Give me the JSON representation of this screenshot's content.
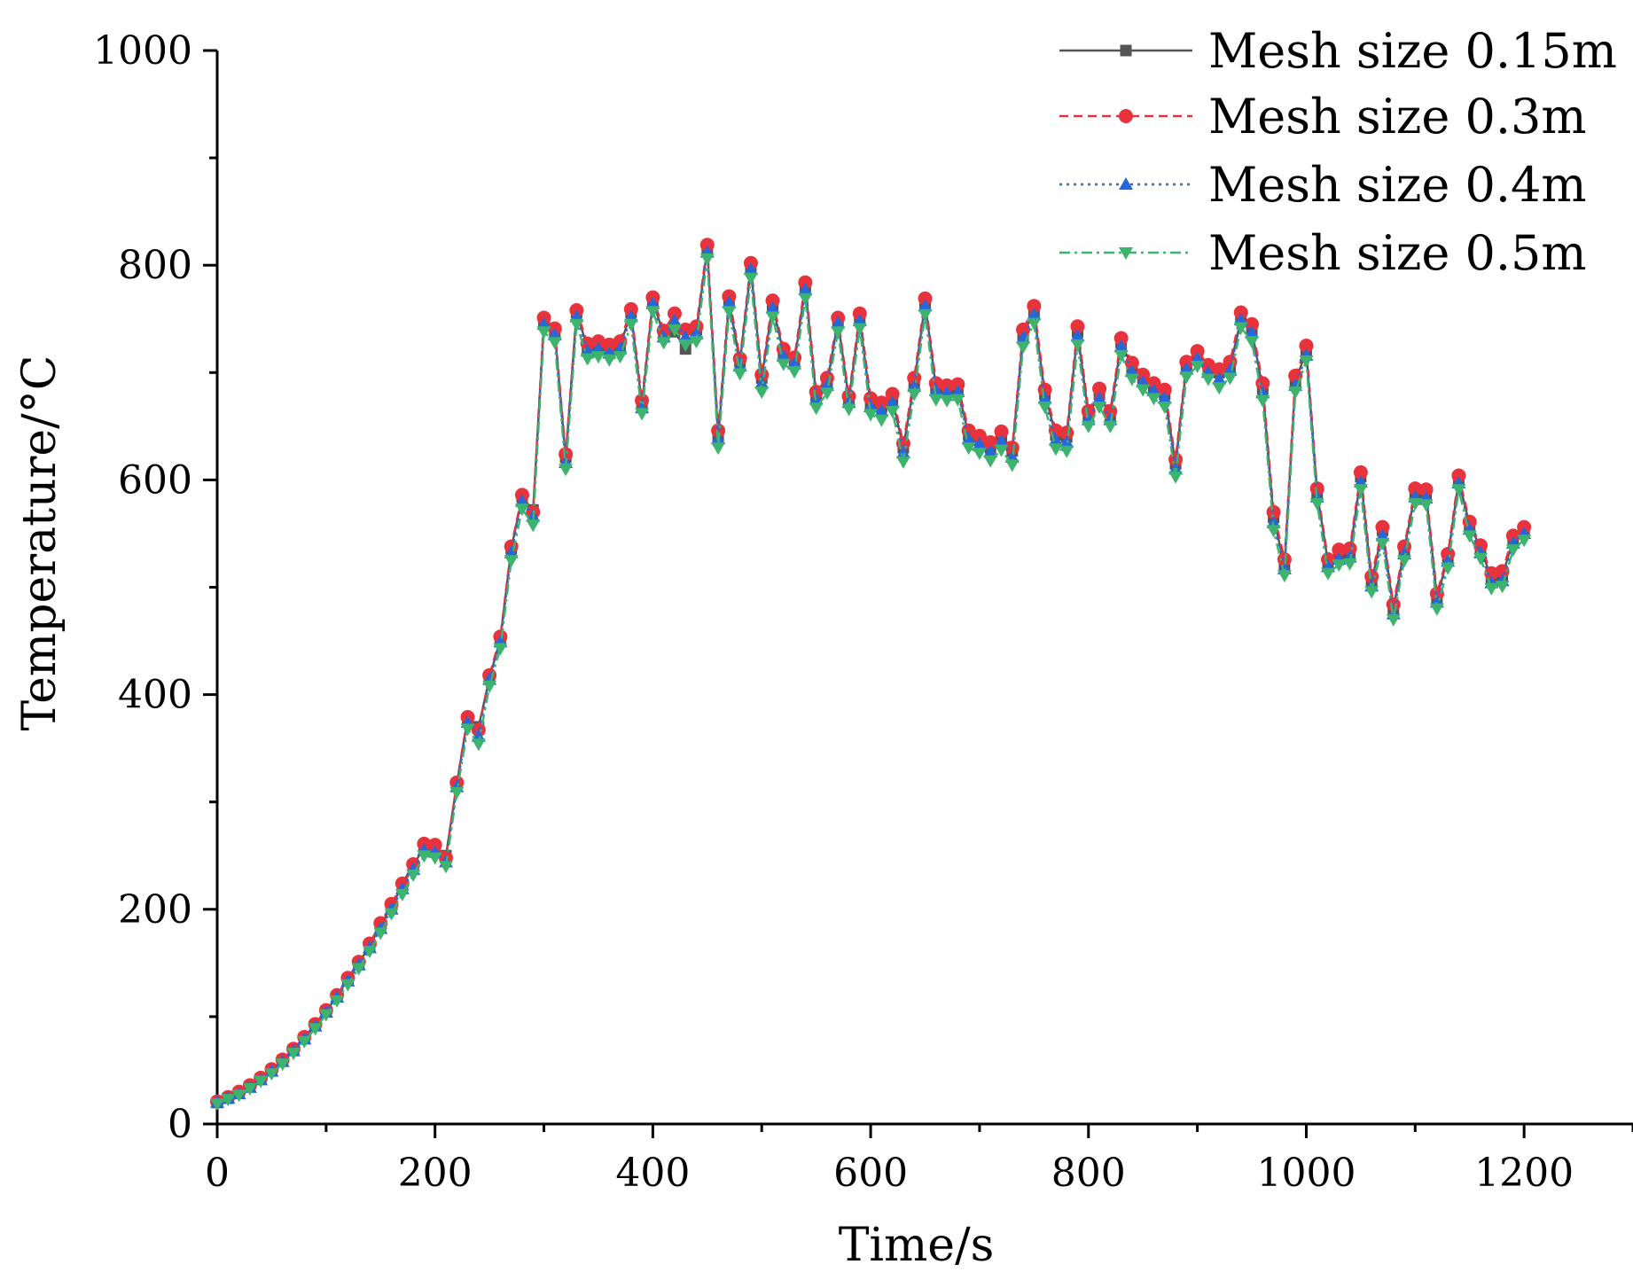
{
  "chart_data": {
    "type": "line",
    "title": "",
    "xlabel": "Time/s",
    "ylabel": "Temperature/°C",
    "xlim": [
      0,
      1300
    ],
    "ylim": [
      0,
      1000
    ],
    "xticks": [
      0,
      200,
      400,
      600,
      800,
      1000,
      1200
    ],
    "yticks": [
      0,
      200,
      400,
      600,
      800,
      1000
    ],
    "xtick_labels": [
      "0",
      "200",
      "400",
      "600",
      "800",
      "1000",
      "1200"
    ],
    "ytick_labels": [
      "0",
      "200",
      "400",
      "600",
      "800",
      "1000"
    ],
    "x": [
      0,
      10,
      20,
      30,
      40,
      50,
      60,
      70,
      80,
      90,
      100,
      110,
      120,
      130,
      140,
      150,
      160,
      170,
      180,
      190,
      200,
      210,
      220,
      230,
      240,
      250,
      260,
      270,
      280,
      290,
      300,
      310,
      320,
      330,
      340,
      350,
      360,
      370,
      380,
      390,
      400,
      410,
      420,
      430,
      440,
      450,
      460,
      470,
      480,
      490,
      500,
      510,
      520,
      530,
      540,
      550,
      560,
      570,
      580,
      590,
      600,
      610,
      620,
      630,
      640,
      650,
      660,
      670,
      680,
      690,
      700,
      710,
      720,
      730,
      740,
      750,
      760,
      770,
      780,
      790,
      800,
      810,
      820,
      830,
      840,
      850,
      860,
      870,
      880,
      890,
      900,
      910,
      920,
      930,
      940,
      950,
      960,
      970,
      980,
      990,
      1000,
      1010,
      1020,
      1030,
      1040,
      1050,
      1060,
      1070,
      1080,
      1090,
      1100,
      1110,
      1120,
      1130,
      1140,
      1150,
      1160,
      1170,
      1180,
      1190,
      1200
    ],
    "legend_position": "top-right",
    "series": [
      {
        "name": "Mesh size 0.15m",
        "color": "#555555",
        "dash": "solid",
        "marker": "square",
        "values": [
          20,
          24,
          29,
          35,
          42,
          50,
          59,
          69,
          80,
          92,
          105,
          119,
          135,
          150,
          166,
          185,
          203,
          222,
          240,
          259,
          257,
          250,
          317,
          378,
          370,
          415,
          452,
          536,
          584,
          572,
          745,
          738,
          621,
          756,
          723,
          725,
          722,
          725,
          756,
          670,
          767,
          735,
          738,
          722,
          740,
          815,
          640,
          766,
          710,
          797,
          695,
          763,
          718,
          710,
          780,
          678,
          690,
          748,
          675,
          750,
          670,
          668,
          675,
          630,
          690,
          765,
          686,
          685,
          685,
          642,
          637,
          630,
          641,
          627,
          735,
          757,
          680,
          642,
          640,
          738,
          660,
          680,
          660,
          728,
          705,
          695,
          685,
          680,
          615,
          706,
          716,
          703,
          700,
          705,
          750,
          740,
          685,
          565,
          520,
          692,
          720,
          588,
          523,
          530,
          532,
          603,
          505,
          553,
          480,
          535,
          588,
          587,
          490,
          528,
          600,
          558,
          537,
          508,
          510,
          545,
          553
        ]
      },
      {
        "name": "Mesh size 0.3m",
        "color": "#E8323C",
        "dash": "dashed",
        "marker": "circle",
        "values": [
          21,
          25,
          30,
          36,
          43,
          51,
          60,
          70,
          81,
          93,
          106,
          120,
          136,
          151,
          168,
          187,
          205,
          224,
          242,
          261,
          260,
          248,
          318,
          379,
          367,
          418,
          454,
          538,
          586,
          570,
          751,
          741,
          624,
          758,
          727,
          729,
          726,
          729,
          759,
          674,
          770,
          739,
          755,
          740,
          743,
          819,
          646,
          771,
          713,
          802,
          698,
          767,
          722,
          714,
          784,
          682,
          695,
          751,
          678,
          755,
          676,
          672,
          680,
          634,
          695,
          769,
          690,
          688,
          689,
          646,
          641,
          635,
          645,
          630,
          740,
          762,
          684,
          646,
          644,
          743,
          664,
          685,
          664,
          732,
          709,
          698,
          690,
          684,
          619,
          710,
          720,
          707,
          703,
          710,
          756,
          745,
          690,
          570,
          526,
          697,
          725,
          592,
          526,
          535,
          536,
          607,
          510,
          556,
          484,
          538,
          592,
          591,
          494,
          531,
          604,
          561,
          539,
          513,
          515,
          548,
          556
        ]
      },
      {
        "name": "Mesh size 0.4m",
        "color": "#2468DC",
        "dash": "dotted",
        "marker": "triangle-up",
        "values": [
          20,
          24,
          28,
          34,
          41,
          49,
          58,
          68,
          79,
          91,
          104,
          118,
          133,
          148,
          164,
          182,
          200,
          219,
          237,
          255,
          253,
          244,
          314,
          374,
          361,
          414,
          449,
          532,
          580,
          566,
          745,
          735,
          616,
          752,
          720,
          722,
          718,
          722,
          752,
          667,
          764,
          733,
          748,
          733,
          736,
          812,
          638,
          765,
          706,
          796,
          690,
          760,
          715,
          708,
          777,
          675,
          688,
          746,
          672,
          748,
          668,
          664,
          672,
          625,
          687,
          762,
          683,
          681,
          682,
          638,
          633,
          626,
          636,
          621,
          732,
          754,
          676,
          637,
          635,
          734,
          656,
          676,
          656,
          724,
          701,
          691,
          683,
          676,
          610,
          703,
          713,
          700,
          694,
          702,
          749,
          737,
          681,
          560,
          517,
          688,
          716,
          584,
          519,
          526,
          528,
          598,
          501,
          548,
          475,
          531,
          584,
          583,
          486,
          524,
          597,
          554,
          532,
          504,
          506,
          541,
          550
        ]
      },
      {
        "name": "Mesh size 0.5m",
        "color": "#3CB46E",
        "dash": "dashdot",
        "marker": "triangle-down",
        "values": [
          19,
          23,
          27,
          33,
          40,
          47,
          56,
          66,
          77,
          89,
          102,
          115,
          130,
          145,
          161,
          178,
          196,
          214,
          232,
          250,
          248,
          240,
          309,
          368,
          354,
          408,
          443,
          525,
          573,
          558,
          738,
          728,
          610,
          745,
          713,
          715,
          712,
          715,
          745,
          662,
          757,
          728,
          740,
          726,
          729,
          806,
          630,
          757,
          699,
          788,
          682,
          752,
          708,
          701,
          769,
          667,
          681,
          738,
          666,
          741,
          661,
          656,
          664,
          617,
          680,
          754,
          675,
          674,
          675,
          630,
          625,
          618,
          628,
          614,
          724,
          746,
          668,
          629,
          627,
          726,
          650,
          668,
          650,
          716,
          694,
          684,
          676,
          668,
          603,
          696,
          706,
          694,
          686,
          695,
          742,
          729,
          674,
          553,
          511,
          682,
          711,
          578,
          513,
          521,
          522,
          591,
          496,
          541,
          470,
          525,
          578,
          577,
          480,
          518,
          591,
          548,
          527,
          499,
          501,
          535,
          544
        ]
      }
    ]
  }
}
